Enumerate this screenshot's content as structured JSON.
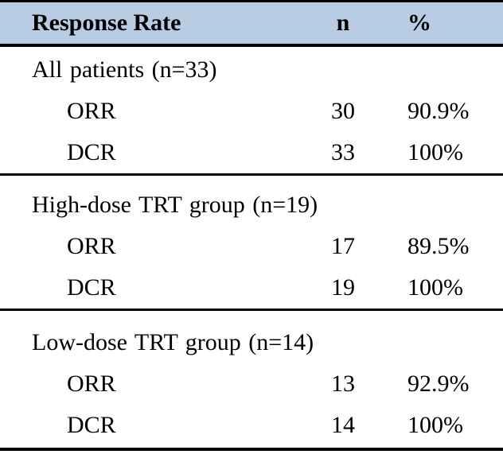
{
  "colors": {
    "header_bg": "#b8cce4",
    "border": "#000000",
    "text": "#000000"
  },
  "table": {
    "columns": {
      "label": "Response Rate",
      "n": "n",
      "pct": "%"
    },
    "sections": [
      {
        "title": "All patients (n=33)",
        "rows": [
          {
            "label": "ORR",
            "n": "30",
            "pct": "90.9%"
          },
          {
            "label": "DCR",
            "n": "33",
            "pct": "100%"
          }
        ]
      },
      {
        "title": "High-dose TRT group (n=19)",
        "rows": [
          {
            "label": "ORR",
            "n": "17",
            "pct": "89.5%"
          },
          {
            "label": "DCR",
            "n": "19",
            "pct": "100%"
          }
        ]
      },
      {
        "title": "Low-dose TRT group (n=14)",
        "rows": [
          {
            "label": "ORR",
            "n": "13",
            "pct": "92.9%"
          },
          {
            "label": "DCR",
            "n": "14",
            "pct": "100%"
          }
        ]
      }
    ]
  }
}
